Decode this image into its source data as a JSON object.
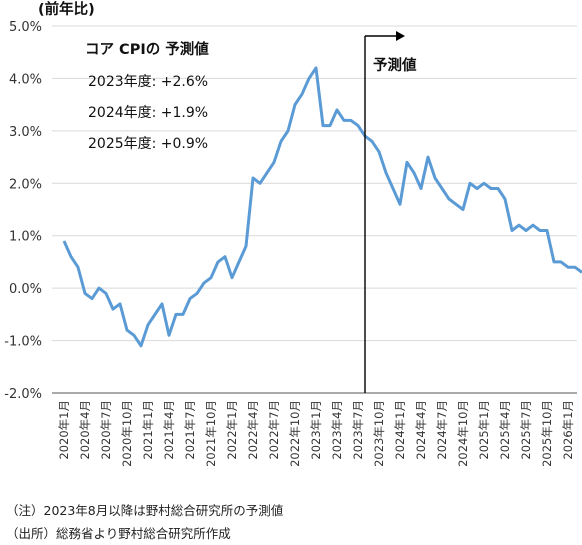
{
  "chart_data": {
    "type": "line",
    "ylabel": "(前年比)",
    "yticks": [
      "5.0%",
      "4.0%",
      "3.0%",
      "2.0%",
      "1.0%",
      "0.0%",
      "-1.0%",
      "-2.0%"
    ],
    "ylim": [
      -2.0,
      5.0
    ],
    "grid": "horizontal",
    "xtick_labels": [
      "2020年1月",
      "2020年4月",
      "2020年7月",
      "2020年10月",
      "2021年1月",
      "2021年4月",
      "2021年7月",
      "2021年10月",
      "2022年1月",
      "2022年4月",
      "2022年7月",
      "2022年10月",
      "2023年1月",
      "2023年4月",
      "2023年7月",
      "2023年10月",
      "2024年1月",
      "2024年4月",
      "2024年7月",
      "2024年10月",
      "2025年1月",
      "2025年4月",
      "2025年7月",
      "2025年10月",
      "2026年1月"
    ],
    "series": [
      {
        "color": "#5b9bd5",
        "values": [
          0.9,
          0.6,
          0.4,
          -0.1,
          -0.2,
          0.0,
          -0.1,
          -0.4,
          -0.3,
          -0.8,
          -0.9,
          -1.1,
          -0.7,
          -0.5,
          -0.3,
          -0.9,
          -0.5,
          -0.5,
          -0.2,
          -0.1,
          0.1,
          0.2,
          0.5,
          0.6,
          0.2,
          0.5,
          0.8,
          2.1,
          2.0,
          2.2,
          2.4,
          2.8,
          3.0,
          3.5,
          3.7,
          4.0,
          4.2,
          3.1,
          3.1,
          3.4,
          3.2,
          3.2,
          3.1,
          2.9,
          2.8,
          2.6,
          2.2,
          1.9,
          1.6,
          2.4,
          2.2,
          1.9,
          2.5,
          2.1,
          1.9,
          1.7,
          1.6,
          1.5,
          2.0,
          1.9,
          2.0,
          1.9,
          1.9,
          1.7,
          1.1,
          1.2,
          1.1,
          1.2,
          1.1,
          1.1,
          0.5,
          0.5,
          0.4,
          0.4,
          0.3
        ]
      }
    ],
    "forecast_start_label": "2023年8月",
    "forecast_label": "予測値",
    "annotations": {
      "title": "コア CPIの 予測値",
      "items": [
        "2023年度: +2.6%",
        "2024年度: +1.9%",
        "2025年度: +0.9%"
      ]
    }
  },
  "notes": {
    "note1": "（注）2023年8月以降は野村総合研究所の予測値",
    "note2": "（出所）総務省より野村総合研究所作成"
  }
}
